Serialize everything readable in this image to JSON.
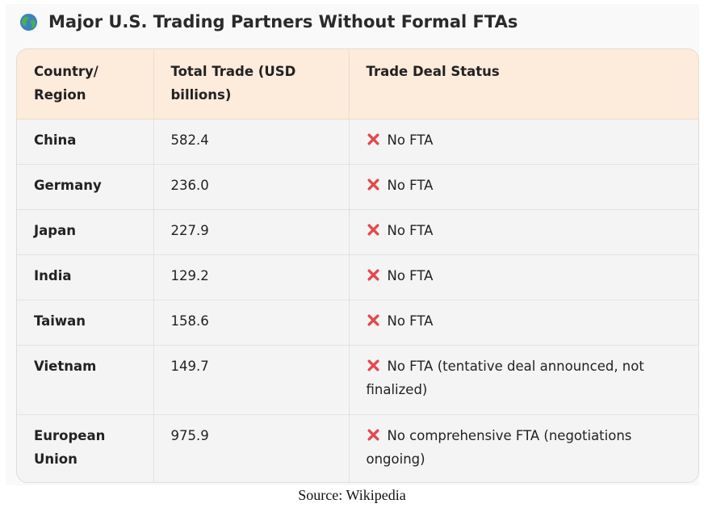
{
  "header": {
    "title": "Major U.S. Trading Partners Without Formal FTAs",
    "icon": "globe-icon"
  },
  "table": {
    "columns": [
      "Country/ Region",
      "Total Trade (USD billions)",
      "Trade Deal Status"
    ],
    "rows": [
      {
        "country": "China",
        "trade": "582.4",
        "status": "No FTA"
      },
      {
        "country": "Germany",
        "trade": "236.0",
        "status": "No FTA"
      },
      {
        "country": "Japan",
        "trade": "227.9",
        "status": "No FTA"
      },
      {
        "country": "India",
        "trade": "129.2",
        "status": "No FTA"
      },
      {
        "country": "Taiwan",
        "trade": "158.6",
        "status": "No FTA"
      },
      {
        "country": "Vietnam",
        "trade": "149.7",
        "status": "No FTA (tentative deal announced, not finalized)"
      },
      {
        "country": "European Union",
        "trade": "975.9",
        "status": "No comprehensive FTA (negotiations ongoing)"
      }
    ],
    "status_icon": "cross-mark-icon",
    "status_icon_color": "#e5484d",
    "header_bg": "#fdebdc"
  },
  "caption": "Source: Wikipedia"
}
